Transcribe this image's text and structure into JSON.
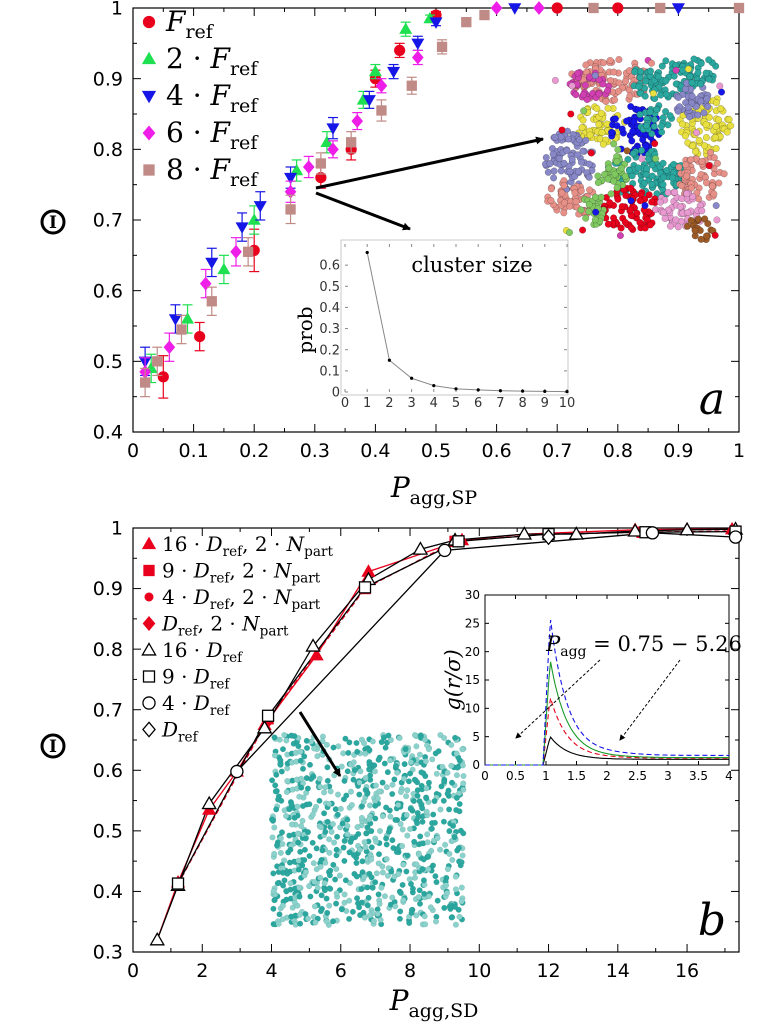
{
  "chart_data": [
    {
      "type": "scatter",
      "panel_label": "a",
      "xlabel": {
        "base": "P",
        "sub": "agg,SP"
      },
      "ylabel": "I",
      "xlim": [
        0,
        1
      ],
      "ylim": [
        0.4,
        1.0
      ],
      "xticks": [
        "0",
        "0.1",
        "0.2",
        "0.3",
        "0.4",
        "0.5",
        "0.6",
        "0.7",
        "0.8",
        "0.9",
        "1"
      ],
      "yticks": [
        "0.4",
        "0.5",
        "0.6",
        "0.7",
        "0.8",
        "0.9",
        "1"
      ],
      "legend_position": "top-left",
      "series": [
        {
          "name": "F_ref",
          "legend": {
            "pre": "",
            "sym": "F",
            "sub": "ref"
          },
          "marker": "circle",
          "color": "#e8001c",
          "x": [
            0.05,
            0.11,
            0.2,
            0.31,
            0.36,
            0.4,
            0.44,
            0.5,
            0.7,
            0.8
          ],
          "y": [
            0.478,
            0.535,
            0.657,
            0.76,
            0.8,
            0.9,
            0.94,
            0.99,
            1.0,
            1.0
          ],
          "err": [
            0.03,
            0.02,
            0.03,
            0.015,
            0.015,
            0.012,
            0.01,
            0.005,
            0,
            0
          ]
        },
        {
          "name": "2 · F_ref",
          "legend": {
            "pre": "2 · ",
            "sym": "F",
            "sub": "ref"
          },
          "marker": "triangle-up",
          "color": "#1ee050",
          "x": [
            0.03,
            0.09,
            0.15,
            0.2,
            0.27,
            0.32,
            0.38,
            0.4,
            0.45,
            0.49
          ],
          "y": [
            0.49,
            0.56,
            0.63,
            0.7,
            0.77,
            0.81,
            0.87,
            0.91,
            0.97,
            0.985
          ],
          "err": [
            0.02,
            0.02,
            0.02,
            0.02,
            0.015,
            0.015,
            0.012,
            0.01,
            0.01,
            0.005
          ]
        },
        {
          "name": "4 · F_ref",
          "legend": {
            "pre": "4 · ",
            "sym": "F",
            "sub": "ref"
          },
          "marker": "triangle-down",
          "color": "#1616e6",
          "x": [
            0.02,
            0.07,
            0.13,
            0.18,
            0.21,
            0.26,
            0.33,
            0.39,
            0.43,
            0.47,
            0.5,
            0.63,
            0.9
          ],
          "y": [
            0.5,
            0.56,
            0.64,
            0.69,
            0.72,
            0.76,
            0.83,
            0.87,
            0.91,
            0.95,
            0.98,
            1.0,
            1.0
          ],
          "err": [
            0.02,
            0.02,
            0.02,
            0.02,
            0.02,
            0.015,
            0.015,
            0.012,
            0.01,
            0.01,
            0.005,
            0,
            0
          ]
        },
        {
          "name": "6 · F_ref",
          "legend": {
            "pre": "6 · ",
            "sym": "F",
            "sub": "ref"
          },
          "marker": "diamond",
          "color": "#ee1ee8",
          "x": [
            0.02,
            0.06,
            0.12,
            0.17,
            0.26,
            0.29,
            0.33,
            0.37,
            0.41,
            0.47,
            0.6,
            0.67
          ],
          "y": [
            0.485,
            0.52,
            0.61,
            0.655,
            0.74,
            0.775,
            0.8,
            0.84,
            0.89,
            0.93,
            1.0,
            1.0
          ],
          "err": [
            0.02,
            0.02,
            0.02,
            0.02,
            0.015,
            0.015,
            0.012,
            0.012,
            0.01,
            0.01,
            0,
            0
          ]
        },
        {
          "name": "8 · F_ref",
          "legend": {
            "pre": "8 · ",
            "sym": "F",
            "sub": "ref"
          },
          "marker": "square",
          "color": "#c08a86",
          "x": [
            0.02,
            0.04,
            0.08,
            0.13,
            0.19,
            0.26,
            0.31,
            0.36,
            0.41,
            0.46,
            0.51,
            0.55,
            0.58,
            0.76,
            0.87,
            1.0
          ],
          "y": [
            0.47,
            0.5,
            0.545,
            0.585,
            0.655,
            0.715,
            0.78,
            0.81,
            0.855,
            0.89,
            0.945,
            0.98,
            0.99,
            1.0,
            1.0,
            1.0
          ],
          "err": [
            0.02,
            0.02,
            0.02,
            0.02,
            0.02,
            0.02,
            0.015,
            0.015,
            0.015,
            0.012,
            0.01,
            0.005,
            0.005,
            0,
            0,
            0
          ]
        }
      ],
      "annotations": [
        {
          "text": "cluster size"
        }
      ],
      "inset": {
        "type": "line",
        "xlabel": "cluster size",
        "ylabel": "prob",
        "xlim": [
          0,
          10
        ],
        "ylim": [
          0,
          0.7
        ],
        "xticks": [
          "0",
          "1",
          "2",
          "3",
          "4",
          "5",
          "6",
          "7",
          "8",
          "9",
          "10"
        ],
        "yticks": [
          "0",
          "0.1",
          "0.2",
          "0.3",
          "0.4",
          "0.5",
          "0.6"
        ],
        "x": [
          1,
          2,
          3,
          4,
          5,
          6,
          7,
          8,
          9,
          10
        ],
        "y": [
          0.66,
          0.15,
          0.065,
          0.03,
          0.015,
          0.01,
          0.006,
          0.004,
          0.003,
          0.002
        ]
      },
      "snapshot_colors": [
        "#e79088",
        "#2aa8a0",
        "#e8e040",
        "#8888c8",
        "#1616e6",
        "#e8001c",
        "#80c860",
        "#e89ad0",
        "#9c5a26",
        "#d040b0"
      ]
    },
    {
      "type": "line",
      "panel_label": "b",
      "xlabel": {
        "base": "P",
        "sub": "agg,SD"
      },
      "ylabel": "I",
      "xlim": [
        0,
        17.5
      ],
      "ylim": [
        0.3,
        1.0
      ],
      "xticks": [
        "0",
        "2",
        "4",
        "6",
        "8",
        "10",
        "12",
        "14",
        "16"
      ],
      "yticks": [
        "0.3",
        "0.4",
        "0.5",
        "0.6",
        "0.7",
        "0.8",
        "0.9",
        "1"
      ],
      "legend_position": "top-left",
      "series": [
        {
          "name": "16 · D_ref, 2 · N_part",
          "legend": {
            "pre": "16 · ",
            "sym": "D",
            "sub": "ref",
            "post": ",  2 · ",
            "sym2": "N",
            "sub2": "part"
          },
          "marker": "triangle-up",
          "filled": true,
          "color": "#e8001c",
          "dash": false,
          "draw_line": true,
          "x": [
            0.7,
            1.3,
            2.2,
            3.0,
            3.8,
            5.3,
            6.8,
            9.5,
            11.3,
            14.5,
            16.0,
            17.3
          ],
          "y": [
            0.32,
            0.415,
            0.535,
            0.598,
            0.675,
            0.79,
            0.928,
            0.98,
            0.99,
            0.997,
            0.998,
            0.998
          ]
        },
        {
          "name": "9 · D_ref, 2 · N_part",
          "legend": {
            "pre": "9 · ",
            "sym": "D",
            "sub": "ref",
            "post": ",  2 · ",
            "sym2": "N",
            "sub2": "part"
          },
          "marker": "square",
          "filled": true,
          "color": "#e8001c",
          "dash": true,
          "draw_line": true,
          "x": [
            1.3,
            3.9,
            6.7,
            9.3,
            12.0,
            14.7,
            17.4
          ],
          "y": [
            0.412,
            0.685,
            0.9,
            0.978,
            0.99,
            0.993,
            0.995
          ]
        },
        {
          "name": "4 · D_ref, 2 · N_part",
          "legend": {
            "pre": "4 · ",
            "sym": "D",
            "sub": "ref",
            "post": ",  2 · ",
            "sym2": "N",
            "sub2": "part"
          },
          "marker": "circle",
          "filled": true,
          "color": "#e8001c",
          "dash": false,
          "draw_line": false,
          "x": [
            3.0,
            15.0
          ],
          "y": [
            0.598,
            0.993
          ]
        },
        {
          "name": "D_ref, 2 · N_part",
          "legend": {
            "pre": "",
            "sym": "D",
            "sub": "ref",
            "post": ",  2 · ",
            "sym2": "N",
            "sub2": "part"
          },
          "marker": "diamond",
          "filled": true,
          "color": "#e8001c",
          "dash": false,
          "draw_line": false,
          "x": [
            3.9,
            12.0
          ],
          "y": [
            0.682,
            0.988
          ]
        },
        {
          "name": "16 · D_ref",
          "legend": {
            "pre": "16 · ",
            "sym": "D",
            "sub": "ref"
          },
          "marker": "triangle-up",
          "filled": false,
          "color": "#000000",
          "dash": false,
          "draw_line": true,
          "x": [
            0.7,
            1.3,
            2.2,
            3.8,
            5.2,
            6.8,
            8.3,
            9.3,
            11.3,
            12.8,
            14.5,
            16.0,
            17.4
          ],
          "y": [
            0.32,
            0.41,
            0.545,
            0.67,
            0.805,
            0.915,
            0.965,
            0.98,
            0.99,
            0.99,
            0.995,
            0.997,
            0.998
          ]
        },
        {
          "name": "9 · D_ref",
          "legend": {
            "pre": "9 · ",
            "sym": "D",
            "sub": "ref"
          },
          "marker": "square",
          "filled": false,
          "color": "#000000",
          "dash": false,
          "draw_line": true,
          "x": [
            1.3,
            3.9,
            6.7,
            9.4,
            12.0,
            14.8,
            17.4
          ],
          "y": [
            0.413,
            0.69,
            0.902,
            0.978,
            0.99,
            0.993,
            0.994
          ]
        },
        {
          "name": "4 · D_ref",
          "legend": {
            "pre": "4 · ",
            "sym": "D",
            "sub": "ref"
          },
          "marker": "circle",
          "filled": false,
          "color": "#000000",
          "dash": false,
          "draw_line": true,
          "x": [
            3.0,
            9.0,
            15.0,
            17.4
          ],
          "y": [
            0.598,
            0.963,
            0.992,
            0.985
          ]
        },
        {
          "name": "D_ref",
          "legend": {
            "pre": "",
            "sym": "D",
            "sub": "ref"
          },
          "marker": "diamond",
          "filled": false,
          "color": "#000000",
          "dash": false,
          "draw_line": false,
          "x": [
            12.0
          ],
          "y": [
            0.985
          ]
        }
      ],
      "inset": {
        "type": "line",
        "ylabel": "g(r/σ)",
        "xlim": [
          0,
          4
        ],
        "ylim": [
          0,
          30
        ],
        "xticks": [
          "0",
          "0.5",
          "1",
          "1.5",
          "2",
          "2.5",
          "3",
          "3.5",
          "4"
        ],
        "yticks": [
          "0",
          "5",
          "10",
          "15",
          "20",
          "25",
          "30"
        ],
        "annotation": {
          "base": "P",
          "sub": "agg",
          "rest": " = 0.75 − 5.26"
        },
        "curves": [
          {
            "color": "#000000",
            "dash": false,
            "peak": 5.0,
            "tail": 1.0
          },
          {
            "color": "#e8001c",
            "dash": true,
            "peak": 12.0,
            "tail": 1.2
          },
          {
            "color": "#1a9a2a",
            "dash": false,
            "peak": 18.5,
            "tail": 1.3
          },
          {
            "color": "#1616e6",
            "dash": true,
            "peak": 26.0,
            "tail": 1.7
          }
        ]
      },
      "snapshot_colors": [
        "#2aa8a0",
        "#8cd2cc"
      ]
    }
  ]
}
